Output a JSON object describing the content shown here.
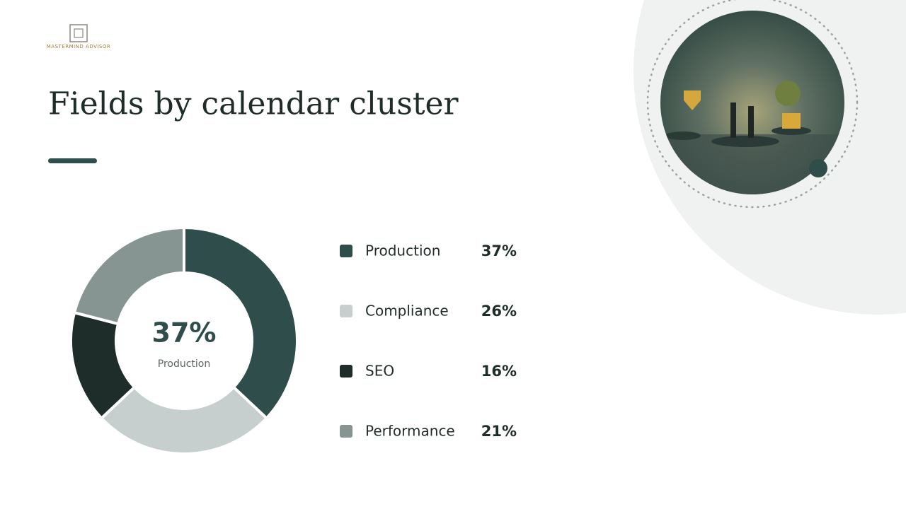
{
  "brand": "MASTERMIND ADVISOR",
  "chart_data": {
    "type": "donut",
    "title": "Fields by calendar cluster",
    "categories": [
      "Production",
      "Compliance",
      "SEO",
      "Performance"
    ],
    "values": [
      37,
      26,
      16,
      21
    ],
    "value_labels": [
      "37%",
      "26%",
      "16%",
      "21%"
    ],
    "colors": [
      "#2f4d4a",
      "#c6cece",
      "#1f2d2a",
      "#879592"
    ]
  }
}
